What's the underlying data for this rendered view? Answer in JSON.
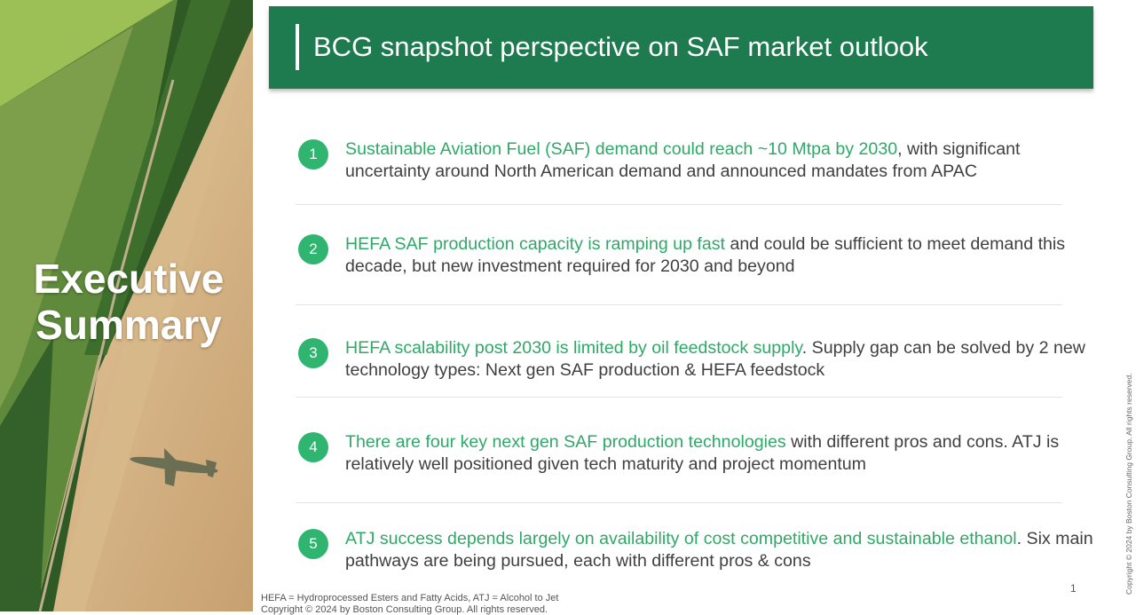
{
  "sidebar": {
    "title_lines": [
      "Executive",
      "Summary"
    ]
  },
  "header": {
    "title": "BCG snapshot perspective on SAF market outlook"
  },
  "items": [
    {
      "number": 1,
      "highlight": "Sustainable Aviation Fuel (SAF) demand could reach ~10 Mtpa by 2030",
      "text": ", with significant uncertainty around North American demand and announced mandates from APAC"
    },
    {
      "number": 2,
      "highlight": "HEFA SAF production capacity is ramping up fast",
      "text": " and could be sufficient to meet demand this decade, but new investment required for 2030 and beyond"
    },
    {
      "number": 3,
      "highlight": "HEFA scalability post 2030 is limited by oil feedstock supply",
      "text": ". Supply gap can be solved by 2 new technology types: Next gen SAF production & HEFA feedstock"
    },
    {
      "number": 4,
      "highlight": "There are four key next gen SAF production technologies",
      "text": " with different pros and cons. ATJ is relatively well positioned given tech maturity and project momentum"
    },
    {
      "number": 5,
      "highlight": "ATJ success depends largely on availability of cost competitive and sustainable ethanol",
      "text": ". Six main pathways are being pursued, each with different pros & cons"
    }
  ],
  "footer": {
    "note": "HEFA = Hydroprocessed Esters and Fatty Acids, ATJ = Alcohol to Jet",
    "copyright": "Copyright © 2024 by Boston Consulting Group. All rights reserved.",
    "page": 1,
    "side_copyright": "Copyright © 2024 by Boston Consulting Group. All rights reserved."
  }
}
